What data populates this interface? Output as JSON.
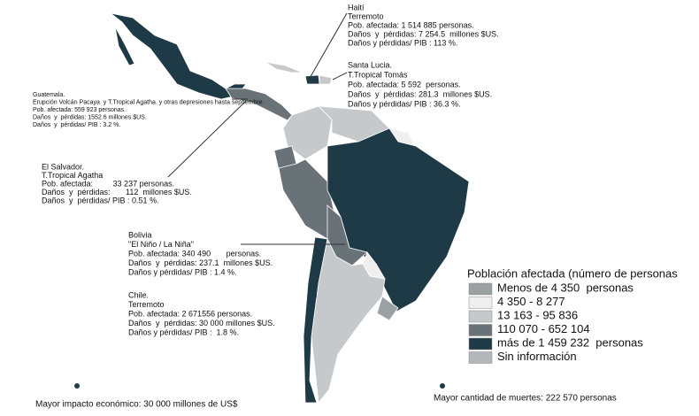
{
  "annotations": [
    {
      "lines": [
        "Haití",
        "Terremoto",
        "Pob. afectada: 1 514 885 personas.",
        "Daños  y  pérdidas: 7 254.5  millones $US.",
        "Daños y pérdidas/ PIB : 113 %."
      ]
    },
    {
      "lines": [
        "Santa Lucia.",
        "T.Tropical Tomás",
        "Pob. afectada: 5 592  personas.",
        "Daños  y  pérdidas: 281.3  millones $US.",
        "Daños y pérdidas/ PIB : 36.3 %."
      ]
    },
    {
      "lines": [
        "Guatemala.",
        "Erupción Volcán Pacaya  y T.Tropical Agatha. y otras depresiones hasta septiembre.",
        "Pob. afectada: 559 923 personas.",
        "Daños  y  pérdidas: 1552.6 millones $US.",
        "Daños  y  pérdidas/ PIB : 3.2 %."
      ]
    },
    {
      "lines": [
        "El Salvador.",
        "T.Tropical Agatha",
        "Pob. afectada:         33 237 personas.",
        "Daños  y  pérdidas:       112  millones $US.",
        "Daños  y  pérdidas/ PIB : 0.51 %."
      ]
    },
    {
      "lines": [
        "Bolivia",
        "\"El Niño / La Niña\"",
        "Pob. afectada: 340 490       personas.",
        "Daños  y  pérdidas: 237.1  millones $US.",
        "Daños y pérdidas/ PIB : 1.4 %."
      ]
    },
    {
      "lines": [
        "Chile.",
        "Terremoto",
        "Pob. afectada: 2 671556 personas.",
        "Daños  y  pérdidas: 30 000 millones $US.",
        "Daños y pérdidas/ PIB :  1.8 %."
      ]
    }
  ],
  "legend": {
    "title": "Población afectada  (número de personas",
    "items": [
      {
        "label": "Menos de 4 350  personas",
        "color": "#9ba0a3"
      },
      {
        "label": "4 350 - 8 277",
        "color": "#efefef"
      },
      {
        "label": "13 163 - 95 836",
        "color": "#c6c9cb"
      },
      {
        "label": "110 070 - 652 104",
        "color": "#697277"
      },
      {
        "label": "más de 1 459 232  personas",
        "color": "#1e3a47"
      },
      {
        "label": "Sin información",
        "color": "#b3b7ba"
      }
    ]
  },
  "footer": {
    "left": "Mayor impacto económico: 30 000 millones de US$",
    "right": "Mayor cantidad de muertes: 222 570  personas"
  }
}
